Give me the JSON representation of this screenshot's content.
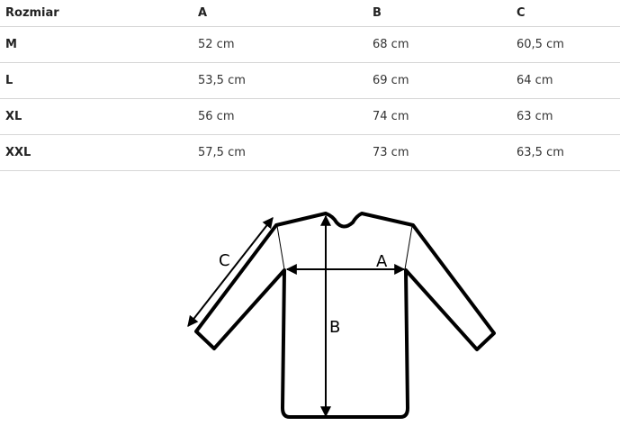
{
  "table": {
    "headers": [
      "Rozmiar",
      "A",
      "B",
      "C"
    ],
    "rows": [
      [
        "M",
        "52 cm",
        "68 cm",
        "60,5 cm"
      ],
      [
        "L",
        "53,5 cm",
        "69 cm",
        "64 cm"
      ],
      [
        "XL",
        "56 cm",
        "74 cm",
        "63 cm"
      ],
      [
        "XXL",
        "57,5 cm",
        "73 cm",
        "63,5 cm"
      ]
    ]
  },
  "diagram": {
    "label_a": "A",
    "label_b": "B",
    "label_c": "C"
  }
}
